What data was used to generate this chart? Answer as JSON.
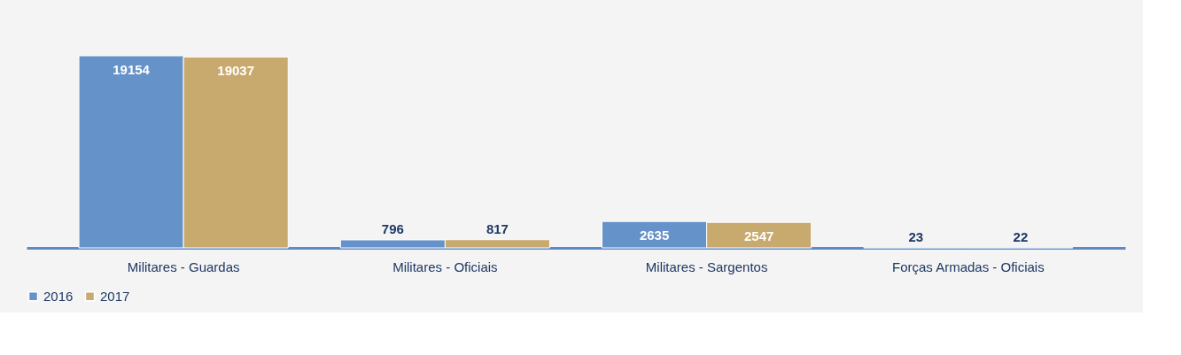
{
  "chart_data": {
    "type": "bar",
    "categories": [
      "Militares - Guardas",
      "Militares - Oficiais",
      "Militares - Sargentos",
      "Forças Armadas - Oficiais"
    ],
    "series": [
      {
        "name": "2016",
        "color": "#6592c8",
        "values": [
          19154,
          796,
          2635,
          23
        ]
      },
      {
        "name": "2017",
        "color": "#c8a96e",
        "values": [
          19037,
          817,
          2547,
          22
        ]
      }
    ],
    "data_labels": true,
    "legend": "bottom",
    "grid": false
  }
}
